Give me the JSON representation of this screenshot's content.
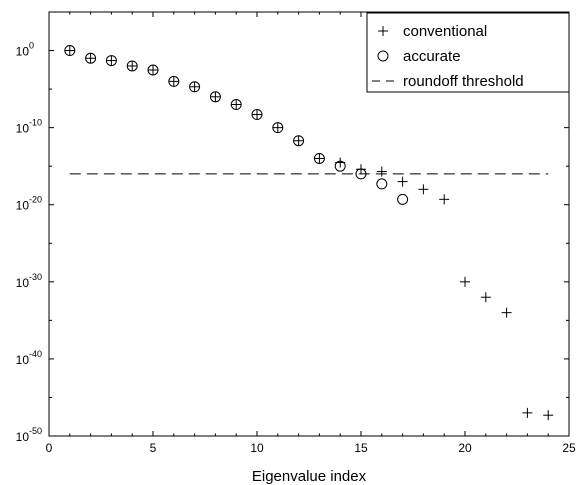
{
  "chart_data": {
    "type": "scatter",
    "title": "",
    "xlabel": "Eigenvalue index",
    "ylabel": "",
    "xlim": [
      0,
      25
    ],
    "ylim": [
      1e-50,
      100000.0
    ],
    "y_scale": "log",
    "grid": false,
    "legend_position": "top-right",
    "x_ticks": [
      {
        "value": 0,
        "label": "0"
      },
      {
        "value": 5,
        "label": "5"
      },
      {
        "value": 10,
        "label": "10"
      },
      {
        "value": 15,
        "label": "15"
      },
      {
        "value": 20,
        "label": "20"
      },
      {
        "value": 25,
        "label": "25"
      }
    ],
    "y_ticks": [
      {
        "value": 1e-50,
        "base": "10",
        "exp": "-50"
      },
      {
        "value": 1e-40,
        "base": "10",
        "exp": "-40"
      },
      {
        "value": 1e-30,
        "base": "10",
        "exp": "-30"
      },
      {
        "value": 1e-20,
        "base": "10",
        "exp": "-20"
      },
      {
        "value": 1e-10,
        "base": "10",
        "exp": "-10"
      },
      {
        "value": 1,
        "base": "10",
        "exp": "0"
      }
    ],
    "series": [
      {
        "name": "conventional",
        "marker": "plus",
        "x": [
          1,
          2,
          3,
          4,
          5,
          6,
          7,
          8,
          9,
          10,
          11,
          12,
          13,
          14,
          15,
          16,
          17,
          18,
          19,
          20,
          21,
          22,
          23,
          24
        ],
        "y": [
          1,
          0.1,
          0.05,
          0.01,
          0.003,
          0.0001,
          2e-05,
          1e-06,
          1e-07,
          5e-09,
          1e-10,
          2e-12,
          1e-14,
          3e-15,
          4e-16,
          2e-16,
          1e-17,
          1e-18,
          5e-20,
          1e-30,
          1e-32,
          1e-34,
          1e-47,
          5e-48
        ]
      },
      {
        "name": "accurate",
        "marker": "circle",
        "x": [
          1,
          2,
          3,
          4,
          5,
          6,
          7,
          8,
          9,
          10,
          11,
          12,
          13,
          14,
          15,
          16,
          17
        ],
        "y": [
          1,
          0.1,
          0.05,
          0.01,
          0.003,
          0.0001,
          2e-05,
          1e-06,
          1e-07,
          5e-09,
          1e-10,
          2e-12,
          1e-14,
          1e-15,
          1e-16,
          5e-18,
          5e-20
        ]
      },
      {
        "name": "roundoff threshold",
        "marker": "dashed-line",
        "x": [
          1,
          24
        ],
        "y": [
          1e-16,
          1e-16
        ]
      }
    ]
  }
}
